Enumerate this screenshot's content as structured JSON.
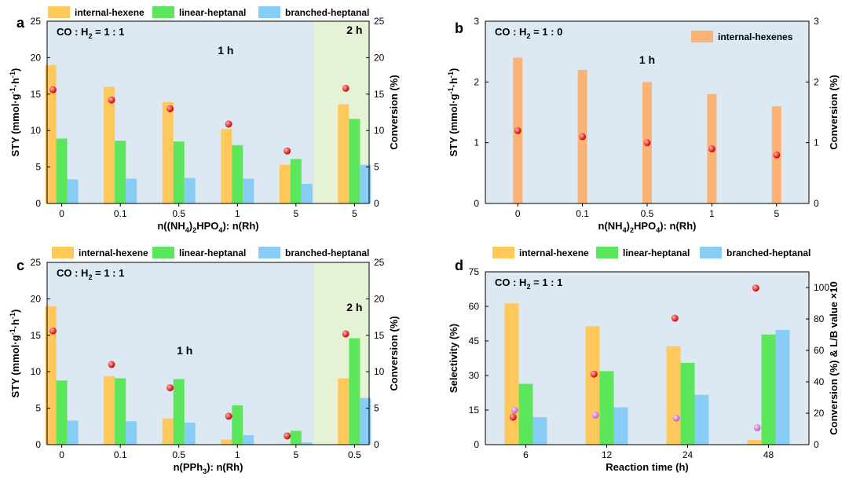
{
  "chart_data": [
    {
      "type": "bar",
      "panel_label": "a",
      "condition": "CO : H$_2$ = 1 : 1",
      "categories": [
        "0",
        "0.1",
        "0.5",
        "1",
        "5",
        "5"
      ],
      "xlabel": "n((NH$_4$)$_2$HPO$_4$): n(Rh)",
      "ylabel": "STY (mmol·g$^{-1}$·h$^{-1}$)",
      "y2label": "Conversion (%)",
      "ylim": [
        0,
        25
      ],
      "y2lim": [
        0,
        25
      ],
      "yticks": [
        "0",
        "5",
        "10",
        "15",
        "20",
        "25"
      ],
      "y2ticks": [
        "0",
        "5",
        "10",
        "15",
        "20",
        "25"
      ],
      "legend": [
        "internal-hexene",
        "linear-heptanal",
        "branched-heptanal"
      ],
      "series": [
        {
          "name": "internal-hexene",
          "color": "#ffc85a",
          "values": [
            19.0,
            16.0,
            13.9,
            10.2,
            5.3,
            13.6
          ]
        },
        {
          "name": "linear-heptanal",
          "color": "#5ce65c",
          "values": [
            8.9,
            8.6,
            8.5,
            8.0,
            6.1,
            11.6
          ]
        },
        {
          "name": "branched-heptanal",
          "color": "#87cdf5",
          "values": [
            3.3,
            3.4,
            3.5,
            3.4,
            2.7,
            5.3
          ]
        }
      ],
      "conversion": [
        15.6,
        14.2,
        13.0,
        10.9,
        7.2,
        15.8
      ],
      "annotations": [
        {
          "text": "1 h",
          "at": 2.8,
          "y": 20.5
        },
        {
          "text": "2 h",
          "at": 5,
          "y": 23.3
        }
      ],
      "highlight_label": "2 h"
    },
    {
      "type": "bar",
      "panel_label": "b",
      "condition": "CO : H$_2$ = 1 : 0",
      "categories": [
        "0",
        "0.1",
        "0.5",
        "1",
        "5"
      ],
      "xlabel": "n(NH$_4$)$_2$HPO$_4$): n(Rh)",
      "ylabel": "STY (mmol·g$^{-1}$·h$^{-1}$)",
      "y2label": "Conversion (%)",
      "ylim": [
        0,
        3
      ],
      "y2lim": [
        0,
        3
      ],
      "yticks": [
        "0",
        "1",
        "2",
        "3"
      ],
      "y2ticks": [
        "0",
        "1",
        "2",
        "3"
      ],
      "legend": [
        "internal-hexenes"
      ],
      "series": [
        {
          "name": "internal-hexenes",
          "color": "#fbb476",
          "values": [
            2.4,
            2.2,
            2.0,
            1.8,
            1.6
          ]
        }
      ],
      "conversion": [
        1.2,
        1.1,
        1.0,
        0.9,
        0.8
      ],
      "annotations": [
        {
          "text": "1 h",
          "at": 2,
          "y": 2.3
        }
      ]
    },
    {
      "type": "bar",
      "panel_label": "c",
      "condition": "CO : H$_2$ = 1 : 1",
      "categories": [
        "0",
        "0.1",
        "0.5",
        "1",
        "5",
        "0.5"
      ],
      "xlabel": "n(PPh$_3$): n(Rh)",
      "ylabel": "STY (mmol·g$^{-1}$·h$^{-1}$)",
      "y2label": "Conversion (%)",
      "ylim": [
        0,
        25
      ],
      "y2lim": [
        0,
        25
      ],
      "yticks": [
        "0",
        "5",
        "10",
        "15",
        "20",
        "25"
      ],
      "y2ticks": [
        "0",
        "5",
        "10",
        "15",
        "20",
        "25"
      ],
      "legend": [
        "internal-hexene",
        "linear-heptanal",
        "branched-heptanal"
      ],
      "series": [
        {
          "name": "internal-hexene",
          "color": "#ffc85a",
          "values": [
            19.0,
            9.4,
            3.6,
            0.7,
            0.1,
            9.1
          ]
        },
        {
          "name": "linear-heptanal",
          "color": "#5ce65c",
          "values": [
            8.8,
            9.1,
            9.0,
            5.4,
            1.9,
            14.6
          ]
        },
        {
          "name": "branched-heptanal",
          "color": "#87cdf5",
          "values": [
            3.3,
            3.2,
            3.0,
            1.3,
            0.3,
            6.4
          ]
        }
      ],
      "conversion": [
        15.6,
        11.0,
        7.8,
        3.9,
        1.2,
        15.2
      ],
      "annotations": [
        {
          "text": "1 h",
          "at": 2.1,
          "y": 12.4
        },
        {
          "text": "2 h",
          "at": 5,
          "y": 18.3
        }
      ],
      "highlight_label": "2 h"
    },
    {
      "type": "bar",
      "panel_label": "d",
      "condition": "CO : H$_2$ = 1 : 1",
      "categories": [
        "6",
        "12",
        "24",
        "48"
      ],
      "xlabel": "Reaction time (h)",
      "ylabel": "Selectivity (%)",
      "y2label": "Conversion (%) & L/B value ×10",
      "ylim": [
        0,
        75
      ],
      "y2lim": [
        0,
        110
      ],
      "yticks": [
        "0",
        "15",
        "30",
        "45",
        "60",
        "75"
      ],
      "y2ticks": [
        "0",
        "20",
        "40",
        "60",
        "80",
        "100"
      ],
      "legend": [
        "internal-hexene",
        "linear-heptanal",
        "branched-heptanal"
      ],
      "series": [
        {
          "name": "internal-hexene",
          "color": "#ffc85a",
          "values": [
            61.3,
            51.4,
            42.7,
            2.0
          ]
        },
        {
          "name": "linear-heptanal",
          "color": "#5ce65c",
          "values": [
            26.4,
            31.9,
            35.5,
            47.8
          ]
        },
        {
          "name": "branched-heptanal",
          "color": "#87cdf5",
          "values": [
            11.9,
            16.2,
            21.6,
            49.8
          ]
        }
      ],
      "conversion": [
        17.5,
        44.9,
        80.5,
        99.7
      ],
      "lb_ratio_x10": [
        22.0,
        18.8,
        16.9,
        10.8
      ]
    }
  ]
}
